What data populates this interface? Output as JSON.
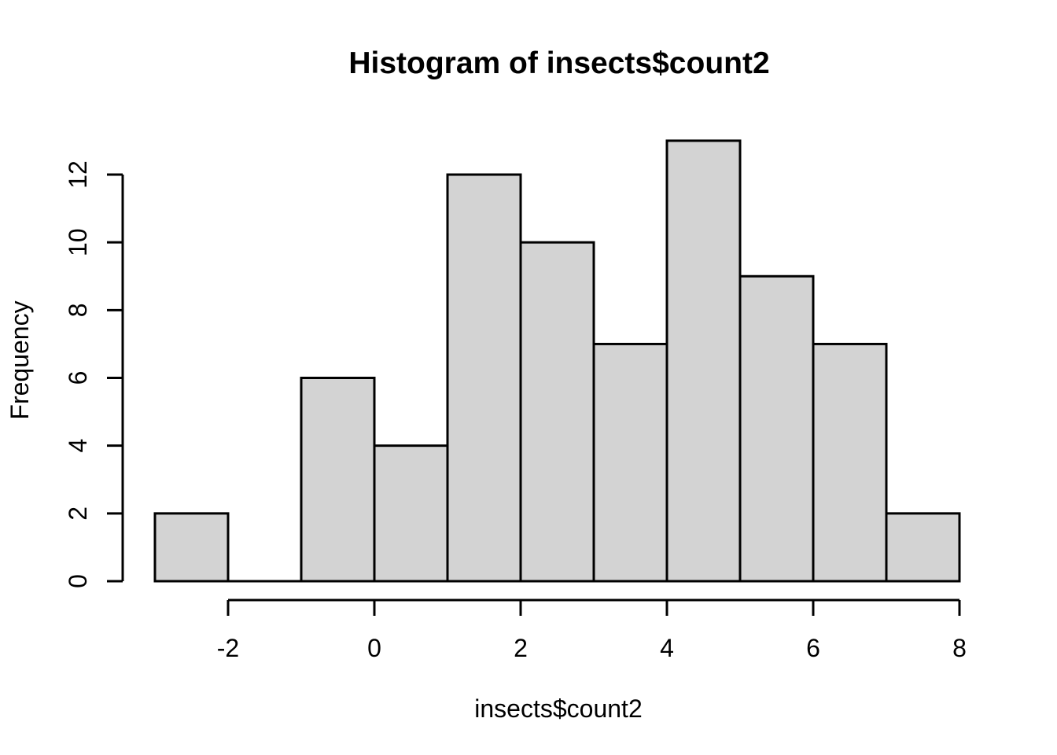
{
  "chart_data": {
    "type": "bar",
    "subtype": "histogram",
    "title": "Histogram of insects$count2",
    "xlabel": "insects$count2",
    "ylabel": "Frequency",
    "bin_edges": [
      -3,
      -2,
      -1,
      0,
      1,
      2,
      3,
      4,
      5,
      6,
      7,
      8
    ],
    "counts": [
      2,
      0,
      6,
      4,
      12,
      10,
      7,
      13,
      9,
      7,
      2
    ],
    "x_ticks": [
      -2,
      0,
      2,
      4,
      6,
      8
    ],
    "y_ticks": [
      0,
      2,
      4,
      6,
      8,
      10,
      12
    ],
    "xlim": [
      -3,
      8
    ],
    "ylim": [
      0,
      13
    ],
    "grid": false,
    "legend": false,
    "bar_fill": "#d3d3d3",
    "bar_stroke": "#000000",
    "axis_color": "#000000",
    "text_color": "#000000",
    "background": "#ffffff"
  }
}
